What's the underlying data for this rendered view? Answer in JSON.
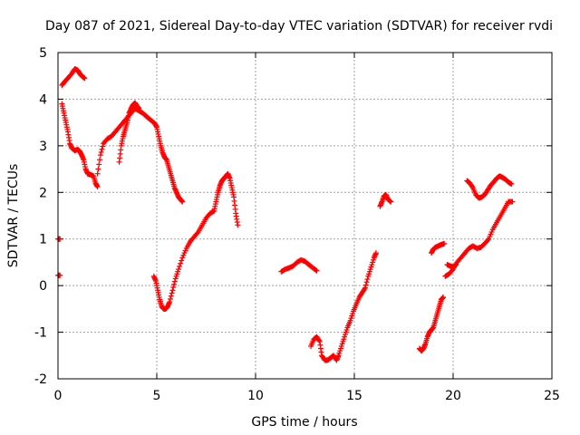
{
  "chart_data": {
    "type": "scatter",
    "title": "Day 087 of 2021, Sidereal Day-to-day VTEC variation (SDTVAR) for receiver rvdi",
    "xlabel": "GPS time / hours",
    "ylabel": "SDTVAR / TECUs",
    "xlim": [
      0,
      25
    ],
    "ylim": [
      -2,
      5
    ],
    "xticks": [
      "0",
      "5",
      "10",
      "15",
      "20",
      "25"
    ],
    "yticks": [
      "-2",
      "-1",
      "0",
      "1",
      "2",
      "3",
      "4",
      "5"
    ],
    "grid": true,
    "marker_color": "#ff0000",
    "marker": "plus",
    "segments": [
      {
        "x": [
          0.0,
          0.1
        ],
        "y": [
          1.0,
          1.0
        ]
      },
      {
        "x": [
          0.0,
          0.1
        ],
        "y": [
          0.22,
          0.22
        ]
      },
      {
        "x": [
          0.2,
          0.35,
          0.5,
          0.7,
          0.85,
          1.0,
          1.1,
          1.2,
          1.35
        ],
        "y": [
          4.3,
          4.38,
          4.45,
          4.55,
          4.65,
          4.62,
          4.55,
          4.5,
          4.45
        ]
      },
      {
        "x": [
          0.2,
          0.3,
          0.4,
          0.5,
          0.6,
          0.7,
          0.85,
          1.0,
          1.1,
          1.2,
          1.3,
          1.4,
          1.5,
          1.65,
          1.8,
          1.9,
          2.0
        ],
        "y": [
          3.9,
          3.7,
          3.5,
          3.3,
          3.05,
          2.95,
          2.9,
          2.92,
          2.88,
          2.8,
          2.7,
          2.5,
          2.4,
          2.38,
          2.35,
          2.2,
          2.12
        ]
      },
      {
        "x": [
          2.0,
          2.15,
          2.3,
          2.5,
          2.7,
          2.9,
          3.1,
          3.3,
          3.5,
          3.7,
          3.9,
          4.1,
          4.3,
          4.5,
          4.7,
          4.9,
          5.0,
          5.1,
          5.2,
          5.3,
          5.4,
          5.5,
          5.6,
          5.7,
          5.8,
          5.9,
          6.0,
          6.1,
          6.2,
          6.3
        ],
        "y": [
          2.4,
          2.8,
          3.05,
          3.15,
          3.2,
          3.3,
          3.4,
          3.5,
          3.6,
          3.7,
          3.8,
          3.75,
          3.7,
          3.62,
          3.55,
          3.48,
          3.4,
          3.2,
          3.0,
          2.85,
          2.75,
          2.7,
          2.55,
          2.4,
          2.25,
          2.1,
          2.0,
          1.9,
          1.85,
          1.8
        ]
      },
      {
        "x": [
          3.1,
          3.2,
          3.3,
          3.4,
          3.5,
          3.6,
          3.7,
          3.8,
          3.9,
          4.0,
          4.1
        ],
        "y": [
          2.65,
          3.0,
          3.2,
          3.35,
          3.5,
          3.7,
          3.8,
          3.88,
          3.92,
          3.85,
          3.8
        ]
      },
      {
        "x": [
          4.85,
          4.95,
          5.05,
          5.15,
          5.25,
          5.35,
          5.45,
          5.55,
          5.65,
          5.8,
          5.95,
          6.1,
          6.3,
          6.5,
          6.7,
          6.9,
          7.1,
          7.3,
          7.5,
          7.7,
          7.9,
          8.0,
          8.1,
          8.2,
          8.3,
          8.4,
          8.5,
          8.6,
          8.7,
          8.8,
          8.9,
          9.0,
          9.1
        ],
        "y": [
          0.2,
          0.1,
          -0.1,
          -0.3,
          -0.45,
          -0.5,
          -0.5,
          -0.45,
          -0.35,
          -0.1,
          0.15,
          0.35,
          0.6,
          0.8,
          0.95,
          1.05,
          1.15,
          1.3,
          1.45,
          1.55,
          1.6,
          1.8,
          2.0,
          2.15,
          2.25,
          2.3,
          2.35,
          2.4,
          2.3,
          2.1,
          1.9,
          1.55,
          1.3
        ]
      },
      {
        "x": [
          11.3,
          11.5,
          11.7,
          11.9,
          12.1,
          12.3,
          12.5,
          12.7,
          12.9,
          13.1
        ],
        "y": [
          0.3,
          0.35,
          0.38,
          0.42,
          0.5,
          0.55,
          0.52,
          0.45,
          0.38,
          0.32
        ]
      },
      {
        "x": [
          12.8,
          12.95,
          13.1,
          13.25,
          13.35,
          13.5,
          13.65,
          13.8,
          13.95,
          14.1,
          14.2,
          14.35,
          14.5,
          14.65,
          14.8,
          14.95,
          15.1,
          15.25,
          15.4,
          15.55,
          15.7,
          15.85,
          16.0,
          16.1
        ],
        "y": [
          -1.3,
          -1.15,
          -1.1,
          -1.2,
          -1.5,
          -1.6,
          -1.6,
          -1.55,
          -1.5,
          -1.6,
          -1.5,
          -1.3,
          -1.1,
          -0.9,
          -0.75,
          -0.55,
          -0.4,
          -0.25,
          -0.15,
          -0.05,
          0.2,
          0.4,
          0.6,
          0.7
        ]
      },
      {
        "x": [
          16.3,
          16.4,
          16.5,
          16.6,
          16.7,
          16.85
        ],
        "y": [
          1.7,
          1.8,
          1.92,
          1.95,
          1.85,
          1.8
        ]
      },
      {
        "x": [
          18.3,
          18.4,
          18.5,
          18.6,
          18.7,
          18.8,
          18.9,
          19.0,
          19.1,
          19.2,
          19.3,
          19.4,
          19.5
        ],
        "y": [
          -1.35,
          -1.4,
          -1.35,
          -1.25,
          -1.1,
          -1.0,
          -0.95,
          -0.9,
          -0.75,
          -0.6,
          -0.45,
          -0.3,
          -0.25
        ]
      },
      {
        "x": [
          18.9,
          19.0,
          19.1,
          19.25,
          19.4,
          19.55
        ],
        "y": [
          0.7,
          0.78,
          0.82,
          0.85,
          0.88,
          0.9
        ]
      },
      {
        "x": [
          19.6,
          19.8,
          20.0,
          20.2,
          20.4,
          20.6,
          20.8,
          21.0,
          21.2,
          21.4,
          21.6,
          21.8,
          22.0,
          22.2,
          22.4,
          22.6,
          22.8,
          23.0
        ],
        "y": [
          0.2,
          0.25,
          0.35,
          0.5,
          0.6,
          0.7,
          0.8,
          0.85,
          0.8,
          0.82,
          0.9,
          1.0,
          1.2,
          1.35,
          1.5,
          1.65,
          1.8,
          1.8
        ]
      },
      {
        "x": [
          19.7,
          19.85,
          20.0,
          20.15
        ],
        "y": [
          0.45,
          0.42,
          0.4,
          0.45
        ]
      },
      {
        "x": [
          20.7,
          20.85,
          21.0,
          21.15,
          21.3,
          21.45,
          21.6,
          21.75,
          21.9,
          22.05,
          22.2,
          22.35,
          22.5,
          22.65,
          22.8,
          22.95
        ],
        "y": [
          2.25,
          2.2,
          2.1,
          1.95,
          1.88,
          1.9,
          1.95,
          2.05,
          2.15,
          2.22,
          2.3,
          2.35,
          2.32,
          2.28,
          2.22,
          2.18
        ]
      }
    ]
  }
}
